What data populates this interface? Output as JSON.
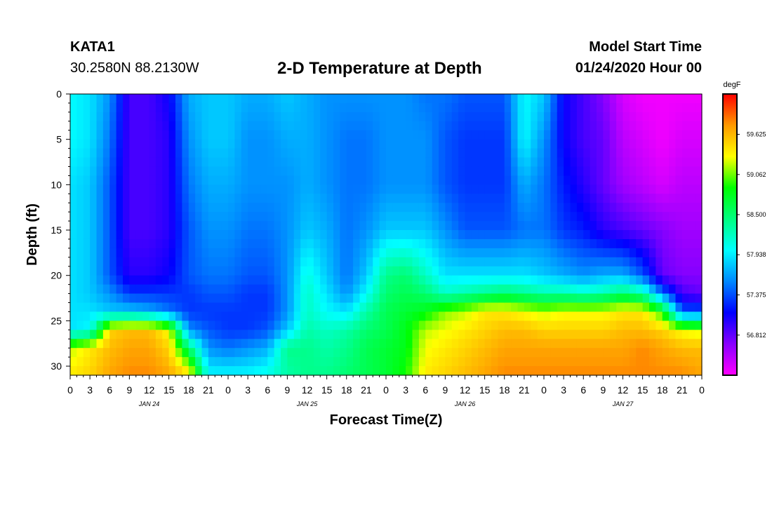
{
  "header": {
    "station": "KATA1",
    "coords": "30.2580N 88.2130W",
    "title": "2-D Temperature at Depth",
    "start_label": "Model Start Time",
    "start_time": "01/24/2020 Hour 00"
  },
  "chart_data": {
    "type": "heatmap",
    "title": "2-D Temperature at Depth",
    "xlabel": "Forecast Time(Z)",
    "ylabel": "Depth (ft)",
    "xlim": [
      0,
      96
    ],
    "ylim": [
      0,
      31
    ],
    "y_inverted": true,
    "x_tick_hours": [
      0,
      3,
      6,
      9,
      12,
      15,
      18,
      21,
      24,
      27,
      30,
      33,
      36,
      39,
      42,
      45,
      48,
      51,
      54,
      57,
      60,
      63,
      66,
      69,
      72,
      75,
      78,
      81,
      84,
      87,
      90,
      93,
      96
    ],
    "x_tick_labels": [
      "0",
      "3",
      "6",
      "9",
      "12",
      "15",
      "18",
      "21",
      "0",
      "3",
      "6",
      "9",
      "12",
      "15",
      "18",
      "21",
      "0",
      "3",
      "6",
      "9",
      "12",
      "15",
      "18",
      "21",
      "0",
      "3",
      "6",
      "9",
      "12",
      "15",
      "18",
      "21",
      "0"
    ],
    "day_labels": [
      {
        "hour": 12,
        "label": "JAN 24"
      },
      {
        "hour": 36,
        "label": "JAN 25"
      },
      {
        "hour": 60,
        "label": "JAN 26"
      },
      {
        "hour": 84,
        "label": "JAN 27"
      }
    ],
    "y_ticks": [
      0,
      5,
      10,
      15,
      20,
      25,
      30
    ],
    "y_tick_labels": [
      "0",
      "5",
      "10",
      "15",
      "20",
      "25",
      "30"
    ],
    "colorbar": {
      "unit": "degF",
      "range": [
        56.25,
        60.19
      ],
      "tick_values": [
        59.625,
        59.062,
        58.5,
        57.938,
        57.375,
        56.812
      ],
      "tick_labels": [
        "59.625",
        "59.062",
        "58.500",
        "57.938",
        "57.375",
        "56.812"
      ],
      "colors": [
        "#ff00ff",
        "#8800ff",
        "#0000ff",
        "#0088ff",
        "#00ffff",
        "#00ff80",
        "#00ff00",
        "#ffff00",
        "#ff9900",
        "#ff0000"
      ]
    },
    "grid": {
      "hours": [
        0,
        3,
        6,
        9,
        12,
        15,
        18,
        21,
        24,
        27,
        30,
        33,
        36,
        39,
        42,
        45,
        48,
        51,
        54,
        57,
        60,
        63,
        66,
        69,
        72,
        75,
        78,
        81,
        84,
        87,
        90,
        93,
        96
      ],
      "depths": [
        0,
        5,
        10,
        15,
        20,
        22,
        24,
        26,
        28,
        31
      ],
      "values": [
        [
          58.0,
          58.0,
          57.9,
          57.9,
          57.9,
          57.9,
          57.9,
          57.9,
          59.2,
          59.4
        ],
        [
          57.9,
          57.9,
          57.8,
          57.8,
          57.8,
          57.8,
          57.9,
          58.0,
          59.4,
          59.5
        ],
        [
          57.6,
          57.5,
          57.4,
          57.4,
          57.4,
          57.6,
          57.8,
          59.5,
          59.6,
          59.7
        ],
        [
          56.9,
          56.9,
          56.9,
          56.9,
          57.0,
          57.3,
          57.8,
          59.6,
          59.7,
          59.8
        ],
        [
          56.9,
          56.9,
          56.9,
          56.9,
          57.0,
          57.3,
          57.7,
          59.6,
          59.7,
          59.8
        ],
        [
          57.1,
          57.0,
          57.0,
          57.0,
          57.1,
          57.3,
          57.5,
          59.3,
          59.5,
          59.7
        ],
        [
          57.7,
          57.6,
          57.5,
          57.4,
          57.4,
          57.3,
          57.3,
          57.6,
          58.5,
          59.5
        ],
        [
          57.8,
          57.8,
          57.7,
          57.6,
          57.5,
          57.4,
          57.3,
          57.4,
          57.6,
          58.0
        ],
        [
          57.8,
          57.8,
          57.7,
          57.6,
          57.5,
          57.4,
          57.3,
          57.3,
          57.5,
          58.0
        ],
        [
          57.7,
          57.6,
          57.6,
          57.5,
          57.4,
          57.3,
          57.3,
          57.3,
          57.6,
          58.0
        ],
        [
          57.7,
          57.6,
          57.6,
          57.5,
          57.4,
          57.3,
          57.3,
          57.4,
          57.7,
          58.1
        ],
        [
          57.8,
          57.7,
          57.6,
          57.6,
          57.6,
          57.6,
          57.6,
          57.8,
          58.4,
          58.3
        ],
        [
          57.7,
          57.7,
          57.7,
          57.8,
          58.1,
          58.2,
          58.2,
          58.3,
          58.4,
          58.4
        ],
        [
          57.6,
          57.6,
          57.6,
          57.7,
          57.8,
          57.9,
          58.0,
          58.2,
          58.3,
          58.4
        ],
        [
          57.6,
          57.5,
          57.5,
          57.5,
          57.5,
          57.6,
          57.9,
          58.3,
          58.4,
          58.5
        ],
        [
          57.6,
          57.5,
          57.5,
          57.6,
          57.8,
          58.0,
          58.3,
          58.5,
          58.6,
          58.6
        ],
        [
          57.6,
          57.6,
          57.6,
          57.8,
          58.4,
          58.5,
          58.6,
          58.6,
          58.7,
          58.7
        ],
        [
          57.6,
          57.6,
          57.6,
          57.8,
          58.5,
          58.6,
          58.7,
          58.8,
          58.8,
          58.9
        ],
        [
          57.5,
          57.6,
          57.6,
          57.8,
          58.2,
          58.5,
          58.8,
          59.2,
          59.3,
          59.4
        ],
        [
          57.5,
          57.4,
          57.4,
          57.6,
          57.9,
          58.2,
          59.1,
          59.3,
          59.4,
          59.5
        ],
        [
          57.4,
          57.3,
          57.3,
          57.4,
          57.9,
          58.3,
          59.2,
          59.4,
          59.5,
          59.6
        ],
        [
          57.4,
          57.3,
          57.3,
          57.4,
          57.9,
          58.4,
          59.4,
          59.5,
          59.6,
          59.7
        ],
        [
          57.4,
          57.3,
          57.3,
          57.4,
          57.9,
          58.5,
          59.4,
          59.6,
          59.7,
          59.8
        ],
        [
          58.0,
          58.0,
          57.7,
          57.5,
          57.9,
          58.4,
          59.3,
          59.6,
          59.7,
          59.8
        ],
        [
          57.8,
          57.6,
          57.5,
          57.5,
          57.8,
          58.3,
          59.2,
          59.5,
          59.7,
          59.8
        ],
        [
          57.1,
          57.1,
          57.2,
          57.3,
          57.7,
          58.3,
          59.3,
          59.5,
          59.7,
          59.8
        ],
        [
          56.9,
          56.9,
          57.0,
          57.2,
          57.6,
          58.2,
          59.3,
          59.5,
          59.7,
          59.8
        ],
        [
          56.7,
          56.8,
          56.8,
          57.0,
          57.7,
          58.3,
          59.3,
          59.5,
          59.7,
          59.8
        ],
        [
          56.4,
          56.5,
          56.6,
          56.9,
          57.7,
          58.5,
          59.4,
          59.6,
          59.7,
          59.8
        ],
        [
          56.3,
          56.4,
          56.5,
          56.8,
          57.4,
          58.3,
          59.4,
          59.6,
          59.8,
          59.8
        ],
        [
          56.3,
          56.3,
          56.4,
          56.7,
          56.8,
          57.5,
          58.9,
          59.5,
          59.7,
          59.8
        ],
        [
          56.3,
          56.4,
          56.5,
          56.6,
          56.7,
          56.9,
          57.4,
          59.3,
          59.6,
          59.8
        ],
        [
          56.3,
          56.4,
          56.5,
          56.6,
          56.7,
          56.8,
          57.4,
          59.2,
          59.6,
          59.7
        ]
      ]
    }
  }
}
